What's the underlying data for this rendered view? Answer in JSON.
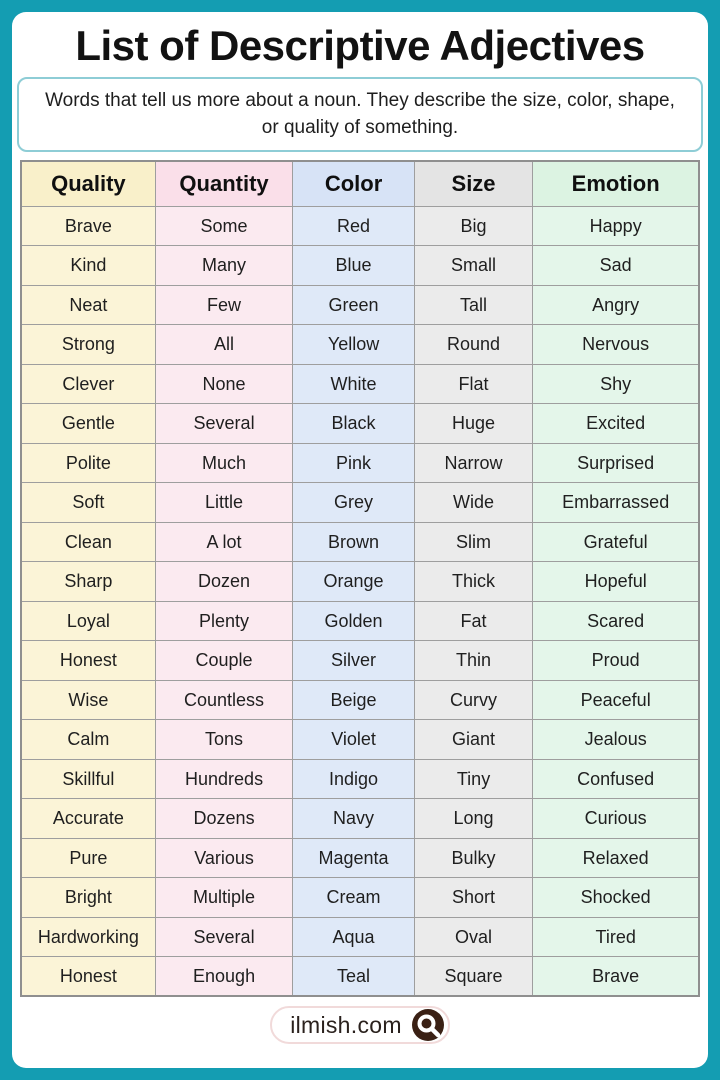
{
  "page": {
    "title": "List of Descriptive Adjectives",
    "description": "Words that tell us more about a noun. They describe the size, color, shape, or quality of something.",
    "footer": {
      "brand": "ilmish.com",
      "logo_icon": "magnifier-q-icon"
    },
    "colors": {
      "frame_teal": "#149DB2",
      "card_bg": "#FFFFFF",
      "description_border": "#8ECDD6",
      "grid_border": "#9E9E9E",
      "text_dark": "#1F1F1F",
      "logo_circle": "#3A2014",
      "pill_border": "#F1DADA"
    }
  },
  "table": {
    "columns": [
      {
        "label": "Quality",
        "header_bg": "#F9F0CA",
        "cell_bg": "#FBF4D7",
        "width": "19.8%"
      },
      {
        "label": "Quantity",
        "header_bg": "#FADFE9",
        "cell_bg": "#FBEAF0",
        "width": "20.3%"
      },
      {
        "label": "Color",
        "header_bg": "#D7E3F6",
        "cell_bg": "#DFE9F8",
        "width": "17.9%"
      },
      {
        "label": "Size",
        "header_bg": "#E4E4E4",
        "cell_bg": "#EBEBEB",
        "width": "17.5%"
      },
      {
        "label": "Emotion",
        "header_bg": "#DCF3E2",
        "cell_bg": "#E4F6EA",
        "width": "24.5%"
      }
    ],
    "rows": [
      [
        "Brave",
        "Some",
        "Red",
        "Big",
        "Happy"
      ],
      [
        "Kind",
        "Many",
        "Blue",
        "Small",
        "Sad"
      ],
      [
        "Neat",
        "Few",
        "Green",
        "Tall",
        "Angry"
      ],
      [
        "Strong",
        "All",
        "Yellow",
        "Round",
        "Nervous"
      ],
      [
        "Clever",
        "None",
        "White",
        "Flat",
        "Shy"
      ],
      [
        "Gentle",
        "Several",
        "Black",
        "Huge",
        "Excited"
      ],
      [
        "Polite",
        "Much",
        "Pink",
        "Narrow",
        "Surprised"
      ],
      [
        "Soft",
        "Little",
        "Grey",
        "Wide",
        "Embarrassed"
      ],
      [
        "Clean",
        "A lot",
        "Brown",
        "Slim",
        "Grateful"
      ],
      [
        "Sharp",
        "Dozen",
        "Orange",
        "Thick",
        "Hopeful"
      ],
      [
        "Loyal",
        "Plenty",
        "Golden",
        "Fat",
        "Scared"
      ],
      [
        "Honest",
        "Couple",
        "Silver",
        "Thin",
        "Proud"
      ],
      [
        "Wise",
        "Countless",
        "Beige",
        "Curvy",
        "Peaceful"
      ],
      [
        "Calm",
        "Tons",
        "Violet",
        "Giant",
        "Jealous"
      ],
      [
        "Skillful",
        "Hundreds",
        "Indigo",
        "Tiny",
        "Confused"
      ],
      [
        "Accurate",
        "Dozens",
        "Navy",
        "Long",
        "Curious"
      ],
      [
        "Pure",
        "Various",
        "Magenta",
        "Bulky",
        "Relaxed"
      ],
      [
        "Bright",
        "Multiple",
        "Cream",
        "Short",
        "Shocked"
      ],
      [
        "Hardworking",
        "Several",
        "Aqua",
        "Oval",
        "Tired"
      ],
      [
        "Honest",
        "Enough",
        "Teal",
        "Square",
        "Brave"
      ]
    ]
  }
}
